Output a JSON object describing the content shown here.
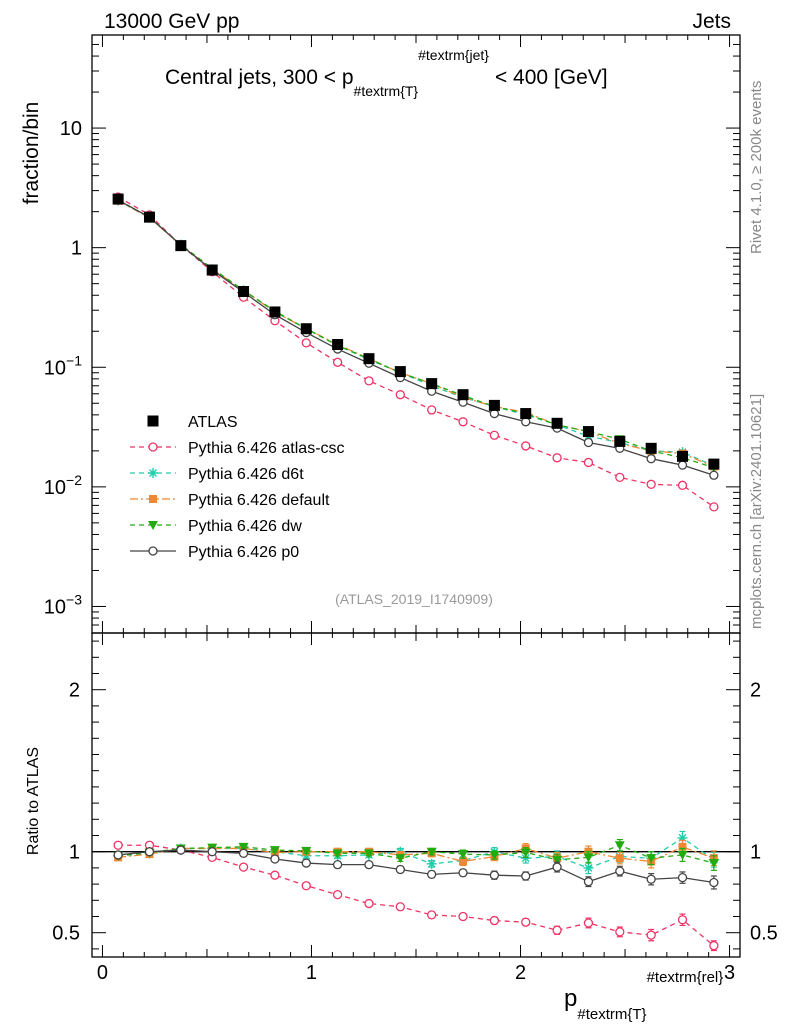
{
  "header": {
    "left": "13000 GeV pp",
    "right": "Jets"
  },
  "side": {
    "rivet": "Rivet 4.1.0, ≥ 200k events",
    "mcplots": "mcplots.cern.ch [arXiv:2401.10621]"
  },
  "plot_title": {
    "pre": "Central jets, 300 < p",
    "sub": "#textrm{T}",
    "sup": "#textrm{jet}",
    "post": "< 400 [GeV]"
  },
  "analysis_id": "(ATLAS_2019_I1740909)",
  "top_ylabel": "fraction/bin",
  "bottom_ylabel": "Ratio to ATLAS",
  "xlabel": {
    "main": "p",
    "sub": "#textrm{T}",
    "sup": "#textrm{rel}"
  },
  "colors": {
    "data": "#000000",
    "atlas_csc": "#ee3366",
    "d6t": "#22ccaa",
    "default": "#ee8833",
    "dw": "#22aa11",
    "p0": "#444444"
  },
  "chart_data": [
    {
      "type": "line",
      "name": "main",
      "yscale": "log",
      "xlim": [
        -0.05,
        3.05
      ],
      "ylim": [
        0.0006,
        60
      ],
      "title": "Central jets, 300 < p_T^jet < 400 [GeV]",
      "ylabel": "fraction/bin",
      "xticks": [
        0,
        1,
        2,
        3
      ],
      "yticks": [
        {
          "v": 0.001,
          "base": "10",
          "exp": "−3"
        },
        {
          "v": 0.01,
          "base": "10",
          "exp": "−2"
        },
        {
          "v": 0.1,
          "base": "10",
          "exp": "−1"
        },
        {
          "v": 1,
          "base": "1",
          "exp": ""
        },
        {
          "v": 10,
          "base": "10",
          "exp": ""
        }
      ],
      "x": [
        0.075,
        0.225,
        0.375,
        0.525,
        0.675,
        0.825,
        0.975,
        1.125,
        1.275,
        1.425,
        1.575,
        1.725,
        1.875,
        2.025,
        2.175,
        2.325,
        2.475,
        2.625,
        2.775,
        2.925
      ],
      "legend_position": "lower-left",
      "series": [
        {
          "name": "ATLAS",
          "key": "data",
          "marker": "square",
          "line": "none",
          "values": [
            2.55,
            1.8,
            1.04,
            0.65,
            0.43,
            0.29,
            0.21,
            0.155,
            0.118,
            0.092,
            0.073,
            0.059,
            0.048,
            0.041,
            0.034,
            0.029,
            0.024,
            0.021,
            0.018,
            0.0155
          ]
        },
        {
          "name": "Pythia 6.426 atlas-csc",
          "key": "atlas_csc",
          "marker": "open-circle",
          "line": "dashed",
          "values": [
            2.65,
            1.88,
            1.05,
            0.63,
            0.385,
            0.245,
            0.16,
            0.11,
            0.077,
            0.059,
            0.044,
            0.035,
            0.027,
            0.022,
            0.0175,
            0.016,
            0.012,
            0.0105,
            0.0103,
            0.0068
          ]
        },
        {
          "name": "Pythia 6.426 d6t",
          "key": "d6t",
          "marker": "star",
          "line": "dashed",
          "values": [
            2.48,
            1.78,
            1.06,
            0.66,
            0.44,
            0.29,
            0.21,
            0.152,
            0.116,
            0.09,
            0.07,
            0.056,
            0.047,
            0.04,
            0.033,
            0.0265,
            0.0235,
            0.02,
            0.0195,
            0.015
          ]
        },
        {
          "name": "Pythia 6.426 default",
          "key": "default",
          "marker": "filled-square",
          "line": "dashdot",
          "values": [
            2.47,
            1.78,
            1.05,
            0.66,
            0.44,
            0.29,
            0.21,
            0.155,
            0.118,
            0.09,
            0.073,
            0.056,
            0.047,
            0.042,
            0.033,
            0.029,
            0.023,
            0.02,
            0.019,
            0.0148
          ]
        },
        {
          "name": "Pythia 6.426 dw",
          "key": "dw",
          "marker": "triangle-down",
          "line": "dashed",
          "values": [
            2.49,
            1.79,
            1.06,
            0.67,
            0.44,
            0.295,
            0.21,
            0.152,
            0.118,
            0.09,
            0.073,
            0.058,
            0.047,
            0.041,
            0.033,
            0.029,
            0.025,
            0.02,
            0.0175,
            0.0145
          ]
        },
        {
          "name": "Pythia 6.426 p0",
          "key": "p0",
          "marker": "open-circle",
          "line": "solid",
          "values": [
            2.5,
            1.8,
            1.05,
            0.65,
            0.425,
            0.275,
            0.195,
            0.142,
            0.108,
            0.082,
            0.063,
            0.051,
            0.041,
            0.035,
            0.031,
            0.0235,
            0.021,
            0.0172,
            0.0152,
            0.0125
          ]
        }
      ]
    },
    {
      "type": "line",
      "name": "ratio",
      "yscale": "linear",
      "xlim": [
        -0.05,
        3.05
      ],
      "ylim": [
        0.35,
        2.35
      ],
      "ylabel": "Ratio to ATLAS",
      "xlabel": "p_T^rel",
      "xticks": [
        0,
        1,
        2,
        3
      ],
      "yticks": [
        0.5,
        1,
        2
      ],
      "reference_line": 1,
      "x": [
        0.075,
        0.225,
        0.375,
        0.525,
        0.675,
        0.825,
        0.975,
        1.125,
        1.275,
        1.425,
        1.575,
        1.725,
        1.875,
        2.025,
        2.175,
        2.325,
        2.475,
        2.625,
        2.775,
        2.925
      ],
      "series": [
        {
          "name": "Pythia 6.426 atlas-csc",
          "key": "atlas_csc",
          "marker": "open-circle",
          "line": "dashed",
          "values": [
            1.04,
            1.04,
            1.01,
            0.965,
            0.905,
            0.855,
            0.79,
            0.735,
            0.68,
            0.66,
            0.61,
            0.6,
            0.575,
            0.565,
            0.515,
            0.56,
            0.505,
            0.485,
            0.58,
            0.42
          ],
          "errors": [
            0.01,
            0.01,
            0.01,
            0.01,
            0.01,
            0.01,
            0.01,
            0.01,
            0.01,
            0.012,
            0.015,
            0.02,
            0.02,
            0.02,
            0.025,
            0.03,
            0.03,
            0.035,
            0.035,
            0.03
          ]
        },
        {
          "name": "Pythia 6.426 d6t",
          "key": "d6t",
          "marker": "star",
          "line": "dashed",
          "values": [
            0.975,
            0.99,
            1.02,
            1.02,
            1.02,
            1.0,
            0.975,
            0.975,
            0.98,
            1.0,
            0.925,
            0.945,
            1.0,
            0.96,
            0.97,
            0.9,
            0.97,
            0.96,
            1.085,
            0.95
          ],
          "errors": [
            0.01,
            0.01,
            0.01,
            0.01,
            0.01,
            0.012,
            0.015,
            0.015,
            0.015,
            0.02,
            0.02,
            0.025,
            0.025,
            0.03,
            0.035,
            0.035,
            0.035,
            0.04,
            0.04,
            0.045
          ]
        },
        {
          "name": "Pythia 6.426 default",
          "key": "default",
          "marker": "filled-square",
          "line": "dashdot",
          "values": [
            0.965,
            0.985,
            1.02,
            1.02,
            1.02,
            0.995,
            1.0,
            1.0,
            1.0,
            0.98,
            0.99,
            0.94,
            0.97,
            1.02,
            0.96,
            1.0,
            0.96,
            0.94,
            1.03,
            0.96
          ],
          "errors": [
            0.01,
            0.01,
            0.01,
            0.01,
            0.01,
            0.012,
            0.015,
            0.015,
            0.015,
            0.02,
            0.02,
            0.025,
            0.025,
            0.03,
            0.035,
            0.035,
            0.035,
            0.04,
            0.04,
            0.045
          ]
        },
        {
          "name": "Pythia 6.426 dw",
          "key": "dw",
          "marker": "triangle-down",
          "line": "dashed",
          "values": [
            0.975,
            0.995,
            1.02,
            1.025,
            1.03,
            1.01,
            1.005,
            0.99,
            0.99,
            0.96,
            1.0,
            0.985,
            0.98,
            0.995,
            0.95,
            0.965,
            1.04,
            0.96,
            0.98,
            0.93
          ],
          "errors": [
            0.01,
            0.01,
            0.01,
            0.01,
            0.01,
            0.012,
            0.015,
            0.015,
            0.015,
            0.02,
            0.02,
            0.025,
            0.025,
            0.03,
            0.035,
            0.035,
            0.035,
            0.04,
            0.04,
            0.045
          ]
        },
        {
          "name": "Pythia 6.426 p0",
          "key": "p0",
          "marker": "open-circle",
          "line": "solid",
          "values": [
            0.98,
            1.0,
            1.01,
            1.0,
            0.99,
            0.955,
            0.93,
            0.92,
            0.92,
            0.89,
            0.86,
            0.87,
            0.855,
            0.85,
            0.905,
            0.815,
            0.88,
            0.83,
            0.84,
            0.81
          ],
          "errors": [
            0.01,
            0.01,
            0.01,
            0.01,
            0.01,
            0.012,
            0.015,
            0.015,
            0.015,
            0.02,
            0.02,
            0.02,
            0.025,
            0.025,
            0.03,
            0.03,
            0.03,
            0.035,
            0.035,
            0.04
          ]
        }
      ]
    }
  ]
}
